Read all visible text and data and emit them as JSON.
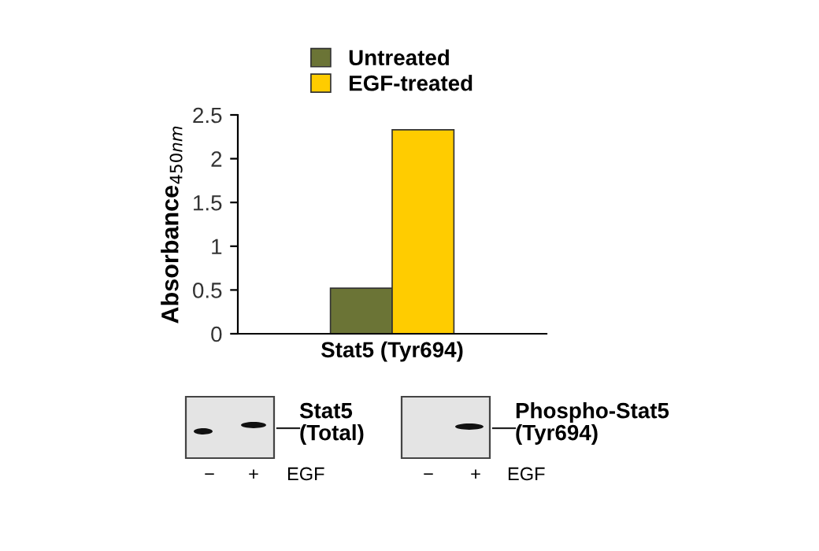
{
  "chart_data": {
    "type": "bar",
    "categories": [
      "Stat5 (Tyr694)"
    ],
    "series": [
      {
        "name": "Untreated",
        "color": "#6b7436",
        "values": [
          0.52
        ]
      },
      {
        "name": "EGF-treated",
        "color": "#ffcc00",
        "values": [
          2.33
        ]
      }
    ],
    "ylabel": "Absorbance$_{450nm}$",
    "ylim": [
      0,
      2.5
    ],
    "yticks": [
      0,
      0.5,
      1,
      1.5,
      2,
      2.5
    ],
    "grid": false,
    "legend": "top",
    "annotations": [
      "Stat5\n(Total)",
      "Phospho-Stat5\n(Tyr694)",
      "−",
      "+",
      "EGF",
      "−",
      "+",
      "EGF"
    ]
  }
}
